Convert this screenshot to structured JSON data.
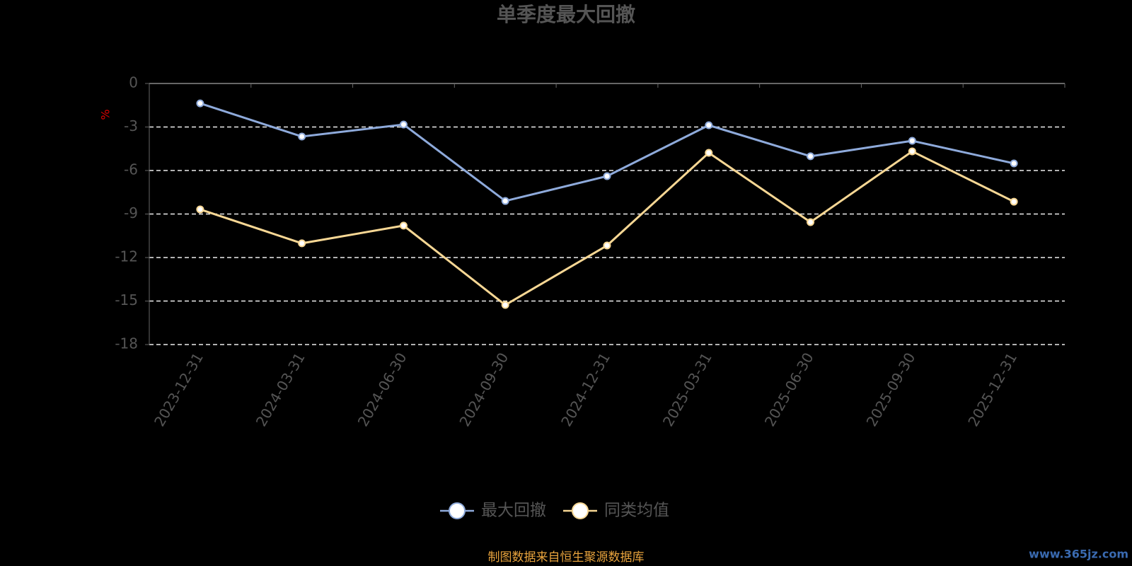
{
  "chart_data": {
    "type": "line",
    "title": "单季度最大回撤",
    "y_label": "%",
    "categories": [
      "2023-12-31",
      "2024-03-31",
      "2024-06-30",
      "2024-09-30",
      "2024-12-31",
      "2025-03-31",
      "2025-06-30",
      "2025-09-30",
      "2025-12-31"
    ],
    "series": [
      {
        "name": "最大回撤",
        "color": "#8eaadb",
        "values": [
          -1.37,
          -3.66,
          -2.83,
          -8.1,
          -6.39,
          -2.88,
          -5.02,
          -3.95,
          -5.51
        ]
      },
      {
        "name": "同类均值",
        "color": "#f7d794",
        "values": [
          -8.68,
          -11.02,
          -9.8,
          -15.27,
          -11.17,
          -4.78,
          -9.56,
          -4.68,
          -8.15
        ]
      }
    ],
    "ylim": [
      -18,
      0
    ],
    "yticks": [
      0,
      -3,
      -6,
      -9,
      -12,
      -15,
      -18
    ],
    "grid": true,
    "legend": "bottom",
    "source": "制图数据来自恒生聚源数据库",
    "watermark": "www.365jz.com"
  }
}
